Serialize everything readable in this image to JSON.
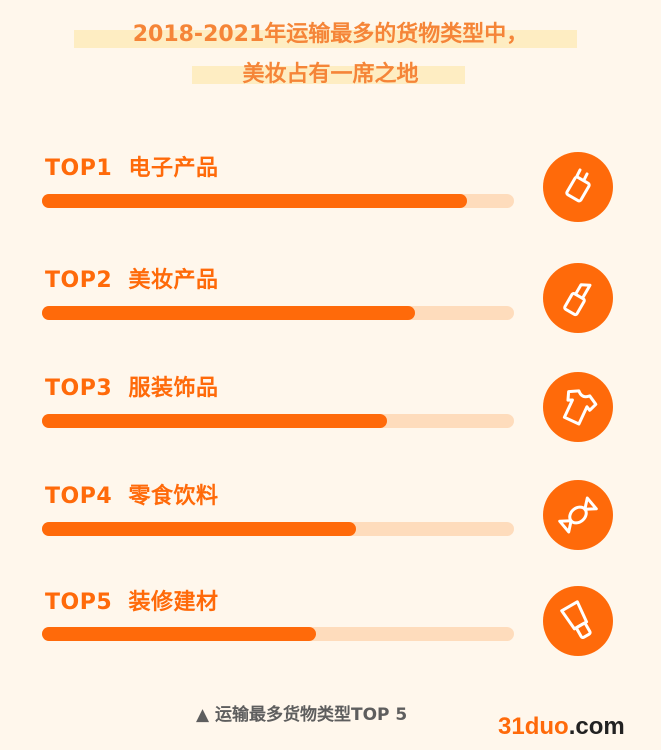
{
  "title": {
    "line1": "2018-2021年运输最多的货物类型中，",
    "line2": "美妆占有一席之地"
  },
  "chart_data": {
    "type": "bar",
    "orientation": "horizontal",
    "categories": [
      "TOP1  电子产品",
      "TOP2  美妆产品",
      "TOP3  服装饰品",
      "TOP4  零食饮料",
      "TOP5  装修建材"
    ],
    "values": [
      0.9,
      0.79,
      0.73,
      0.665,
      0.58
    ],
    "value_unit": "fraction of bar track (no values printed)",
    "icons": [
      "plug-icon",
      "lipstick-icon",
      "tshirt-icon",
      "candy-icon",
      "paint-brush-icon"
    ],
    "colors": {
      "fill": "#ff6a0a",
      "track": "#fedcbc"
    },
    "caption": "▲ 运输最多货物类型TOP 5"
  },
  "watermark": {
    "brand": "31duo",
    "suffix": ".com"
  }
}
